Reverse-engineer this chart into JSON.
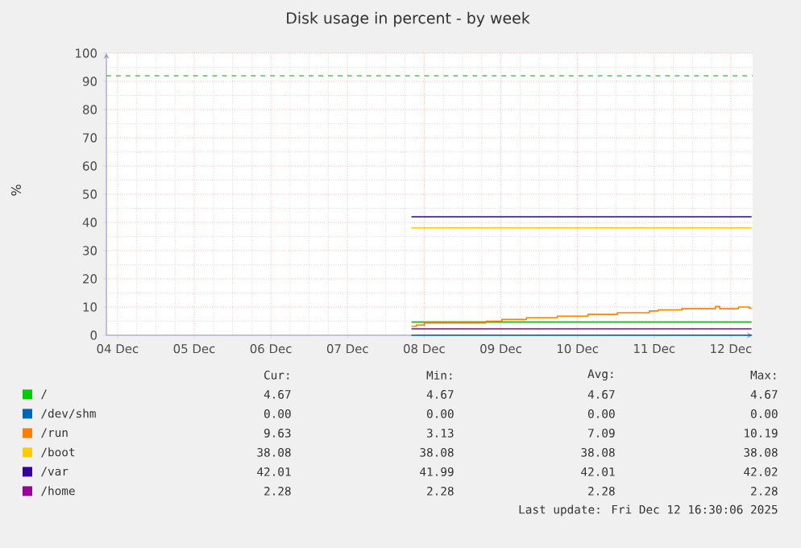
{
  "chart_data": {
    "type": "step",
    "title": "Disk usage in percent - by week",
    "ylabel": "%",
    "xlim": [
      "2025-12-04T08:30",
      "2025-12-12T18:50"
    ],
    "xticks": [
      {
        "value": "2025-12-04T12:00",
        "label": "04 Dec"
      },
      {
        "value": "2025-12-05T12:00",
        "label": "05 Dec"
      },
      {
        "value": "2025-12-06T12:00",
        "label": "06 Dec"
      },
      {
        "value": "2025-12-07T12:00",
        "label": "07 Dec"
      },
      {
        "value": "2025-12-08T12:00",
        "label": "08 Dec"
      },
      {
        "value": "2025-12-09T12:00",
        "label": "09 Dec"
      },
      {
        "value": "2025-12-10T12:00",
        "label": "10 Dec"
      },
      {
        "value": "2025-12-11T12:00",
        "label": "11 Dec"
      },
      {
        "value": "2025-12-12T12:00",
        "label": "12 Dec"
      }
    ],
    "ylim": [
      0,
      100
    ],
    "yticks": [
      0,
      10,
      20,
      30,
      40,
      50,
      60,
      70,
      80,
      90,
      100
    ],
    "grid": true,
    "legend": "bottom",
    "series": [
      {
        "name": "/",
        "color": "#00cc00",
        "x": [
          "2025-12-08T08:00",
          "2025-12-12T18:30"
        ],
        "values": [
          4.67,
          4.67
        ]
      },
      {
        "name": "/dev/shm",
        "color": "#0066b3",
        "x": [
          "2025-12-08T08:00",
          "2025-12-12T18:30"
        ],
        "values": [
          0.0,
          0.0
        ]
      },
      {
        "name": "/run",
        "color": "#ff8000",
        "x": [
          "2025-12-08T08:00",
          "2025-12-08T09:30",
          "2025-12-08T12:00",
          "2025-12-09T07:20",
          "2025-12-09T12:20",
          "2025-12-09T20:00",
          "2025-12-10T05:40",
          "2025-12-10T15:15",
          "2025-12-11T00:30",
          "2025-12-11T10:30",
          "2025-12-11T13:15",
          "2025-12-11T20:40",
          "2025-12-12T07:10",
          "2025-12-12T08:30",
          "2025-12-12T14:20",
          "2025-12-12T17:45",
          "2025-12-12T18:30"
        ],
        "values": [
          3.13,
          3.6,
          4.4,
          5.0,
          5.6,
          6.2,
          6.8,
          7.4,
          8.0,
          8.6,
          9.0,
          9.4,
          10.19,
          9.4,
          10.0,
          9.63,
          9.63
        ]
      },
      {
        "name": "/boot",
        "color": "#ffcc00",
        "x": [
          "2025-12-08T08:00",
          "2025-12-12T18:30"
        ],
        "values": [
          38.08,
          38.08
        ]
      },
      {
        "name": "/var",
        "color": "#330099",
        "x": [
          "2025-12-08T08:00",
          "2025-12-08T09:30",
          "2025-12-08T14:30",
          "2025-12-12T18:30"
        ],
        "values": [
          42.02,
          41.99,
          42.01,
          42.01
        ]
      },
      {
        "name": "/home",
        "color": "#990099",
        "x": [
          "2025-12-08T08:00",
          "2025-12-12T18:30"
        ],
        "values": [
          2.28,
          2.28
        ]
      }
    ],
    "ref_lines": [
      {
        "axis": "y",
        "value": 92,
        "color": "#00aa00",
        "line_style": "dashed"
      }
    ],
    "annotations": [
      "Cur:",
      "Min:",
      "Avg:",
      "Max:",
      "4.67",
      "4.67",
      "4.67",
      "4.67",
      "0.00",
      "0.00",
      "0.00",
      "0.00",
      "9.63",
      "3.13",
      "7.09",
      "10.19",
      "38.08",
      "38.08",
      "38.08",
      "38.08",
      "42.01",
      "41.99",
      "42.01",
      "42.02",
      "2.28",
      "2.28",
      "2.28",
      "2.28",
      "Last update: Fri Dec 12 16:30:06 2025"
    ]
  }
}
